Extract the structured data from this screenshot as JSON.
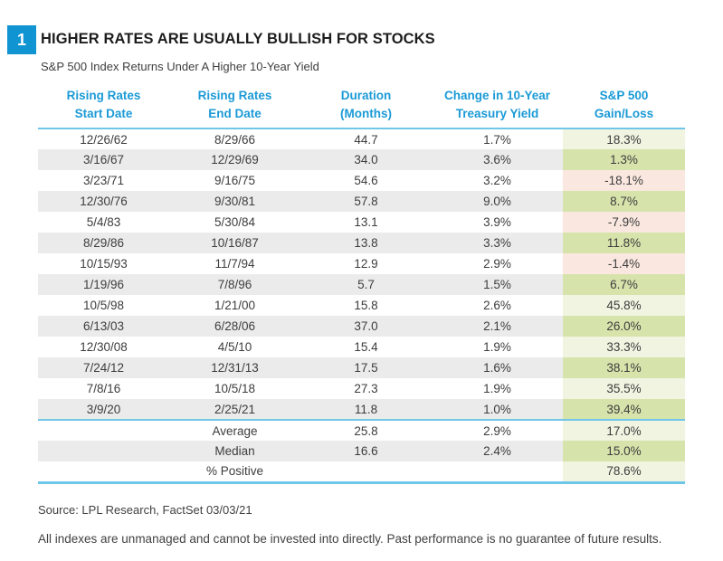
{
  "figure": {
    "badge": "1",
    "title": "HIGHER RATES ARE USUALLY BULLISH FOR STOCKS",
    "subtitle": "S&P 500 Index Returns Under A Higher 10-Year Yield"
  },
  "table": {
    "headers": [
      {
        "line1": "Rising Rates",
        "line2": "Start Date"
      },
      {
        "line1": "Rising Rates",
        "line2": "End Date"
      },
      {
        "line1": "Duration",
        "line2": "(Months)"
      },
      {
        "line1": "Change in 10-Year",
        "line2": "Treasury Yield"
      },
      {
        "line1": "S&P 500",
        "line2": "Gain/Loss"
      }
    ],
    "rows": [
      {
        "start": "12/26/62",
        "end": "8/29/66",
        "duration": "44.7",
        "yield": "1.7%",
        "sp": "18.3%",
        "positive": true
      },
      {
        "start": "3/16/67",
        "end": "12/29/69",
        "duration": "34.0",
        "yield": "3.6%",
        "sp": "1.3%",
        "positive": true
      },
      {
        "start": "3/23/71",
        "end": "9/16/75",
        "duration": "54.6",
        "yield": "3.2%",
        "sp": "-18.1%",
        "positive": false
      },
      {
        "start": "12/30/76",
        "end": "9/30/81",
        "duration": "57.8",
        "yield": "9.0%",
        "sp": "8.7%",
        "positive": true
      },
      {
        "start": "5/4/83",
        "end": "5/30/84",
        "duration": "13.1",
        "yield": "3.9%",
        "sp": "-7.9%",
        "positive": false
      },
      {
        "start": "8/29/86",
        "end": "10/16/87",
        "duration": "13.8",
        "yield": "3.3%",
        "sp": "11.8%",
        "positive": true
      },
      {
        "start": "10/15/93",
        "end": "11/7/94",
        "duration": "12.9",
        "yield": "2.9%",
        "sp": "-1.4%",
        "positive": false
      },
      {
        "start": "1/19/96",
        "end": "7/8/96",
        "duration": "5.7",
        "yield": "1.5%",
        "sp": "6.7%",
        "positive": true
      },
      {
        "start": "10/5/98",
        "end": "1/21/00",
        "duration": "15.8",
        "yield": "2.6%",
        "sp": "45.8%",
        "positive": true
      },
      {
        "start": "6/13/03",
        "end": "6/28/06",
        "duration": "37.0",
        "yield": "2.1%",
        "sp": "26.0%",
        "positive": true
      },
      {
        "start": "12/30/08",
        "end": "4/5/10",
        "duration": "15.4",
        "yield": "1.9%",
        "sp": "33.3%",
        "positive": true
      },
      {
        "start": "7/24/12",
        "end": "12/31/13",
        "duration": "17.5",
        "yield": "1.6%",
        "sp": "38.1%",
        "positive": true
      },
      {
        "start": "7/8/16",
        "end": "10/5/18",
        "duration": "27.3",
        "yield": "1.9%",
        "sp": "35.5%",
        "positive": true
      },
      {
        "start": "3/9/20",
        "end": "2/25/21",
        "duration": "11.8",
        "yield": "1.0%",
        "sp": "39.4%",
        "positive": true
      }
    ],
    "summary": [
      {
        "label": "Average",
        "duration": "25.8",
        "yield": "2.9%",
        "sp": "17.0%",
        "positive": true
      },
      {
        "label": "Median",
        "duration": "16.6",
        "yield": "2.4%",
        "sp": "15.0%",
        "positive": true
      },
      {
        "label": "% Positive",
        "duration": "",
        "yield": "",
        "sp": "78.6%",
        "positive": true
      }
    ]
  },
  "footer": {
    "source": "Source: LPL Research, FactSet 03/03/21",
    "disclaimer": "All indexes are unmanaged and cannot be invested into directly. Past performance is no guarantee of future results."
  },
  "colors": {
    "accent_blue": "#1194d2",
    "header_text_blue": "#1b9ad6",
    "rule_cyan": "#6fc6e8",
    "row_stripe_gray": "#ebebeb",
    "gain_green_light": "#f0f4e1",
    "gain_green_dark": "#d6e3ab",
    "loss_pink_light": "#fae8e0",
    "loss_pink_dark": "#f8e2d9",
    "body_text": "#3d3d3d"
  },
  "chart_data": {
    "type": "table",
    "title": "HIGHER RATES ARE USUALLY BULLISH FOR STOCKS",
    "subtitle": "S&P 500 Index Returns Under A Higher 10-Year Yield",
    "columns": [
      "Rising Rates Start Date",
      "Rising Rates End Date",
      "Duration (Months)",
      "Change in 10-Year Treasury Yield",
      "S&P 500 Gain/Loss"
    ],
    "rows": [
      [
        "12/26/62",
        "8/29/66",
        44.7,
        "1.7%",
        "18.3%"
      ],
      [
        "3/16/67",
        "12/29/69",
        34.0,
        "3.6%",
        "1.3%"
      ],
      [
        "3/23/71",
        "9/16/75",
        54.6,
        "3.2%",
        "-18.1%"
      ],
      [
        "12/30/76",
        "9/30/81",
        57.8,
        "9.0%",
        "8.7%"
      ],
      [
        "5/4/83",
        "5/30/84",
        13.1,
        "3.9%",
        "-7.9%"
      ],
      [
        "8/29/86",
        "10/16/87",
        13.8,
        "3.3%",
        "11.8%"
      ],
      [
        "10/15/93",
        "11/7/94",
        12.9,
        "2.9%",
        "-1.4%"
      ],
      [
        "1/19/96",
        "7/8/96",
        5.7,
        "1.5%",
        "6.7%"
      ],
      [
        "10/5/98",
        "1/21/00",
        15.8,
        "2.6%",
        "45.8%"
      ],
      [
        "6/13/03",
        "6/28/06",
        37.0,
        "2.1%",
        "26.0%"
      ],
      [
        "12/30/08",
        "4/5/10",
        15.4,
        "1.9%",
        "33.3%"
      ],
      [
        "7/24/12",
        "12/31/13",
        17.5,
        "1.6%",
        "38.1%"
      ],
      [
        "7/8/16",
        "10/5/18",
        27.3,
        "1.9%",
        "35.5%"
      ],
      [
        "3/9/20",
        "2/25/21",
        11.8,
        "1.0%",
        "39.4%"
      ]
    ],
    "summary_rows": [
      [
        "Average",
        25.8,
        "2.9%",
        "17.0%"
      ],
      [
        "Median",
        16.6,
        "2.4%",
        "15.0%"
      ],
      [
        "% Positive",
        null,
        null,
        "78.6%"
      ]
    ],
    "source": "Source: LPL Research, FactSet 03/03/21",
    "disclaimer": "All indexes are unmanaged and cannot be invested into directly. Past performance is no guarantee of future results."
  }
}
